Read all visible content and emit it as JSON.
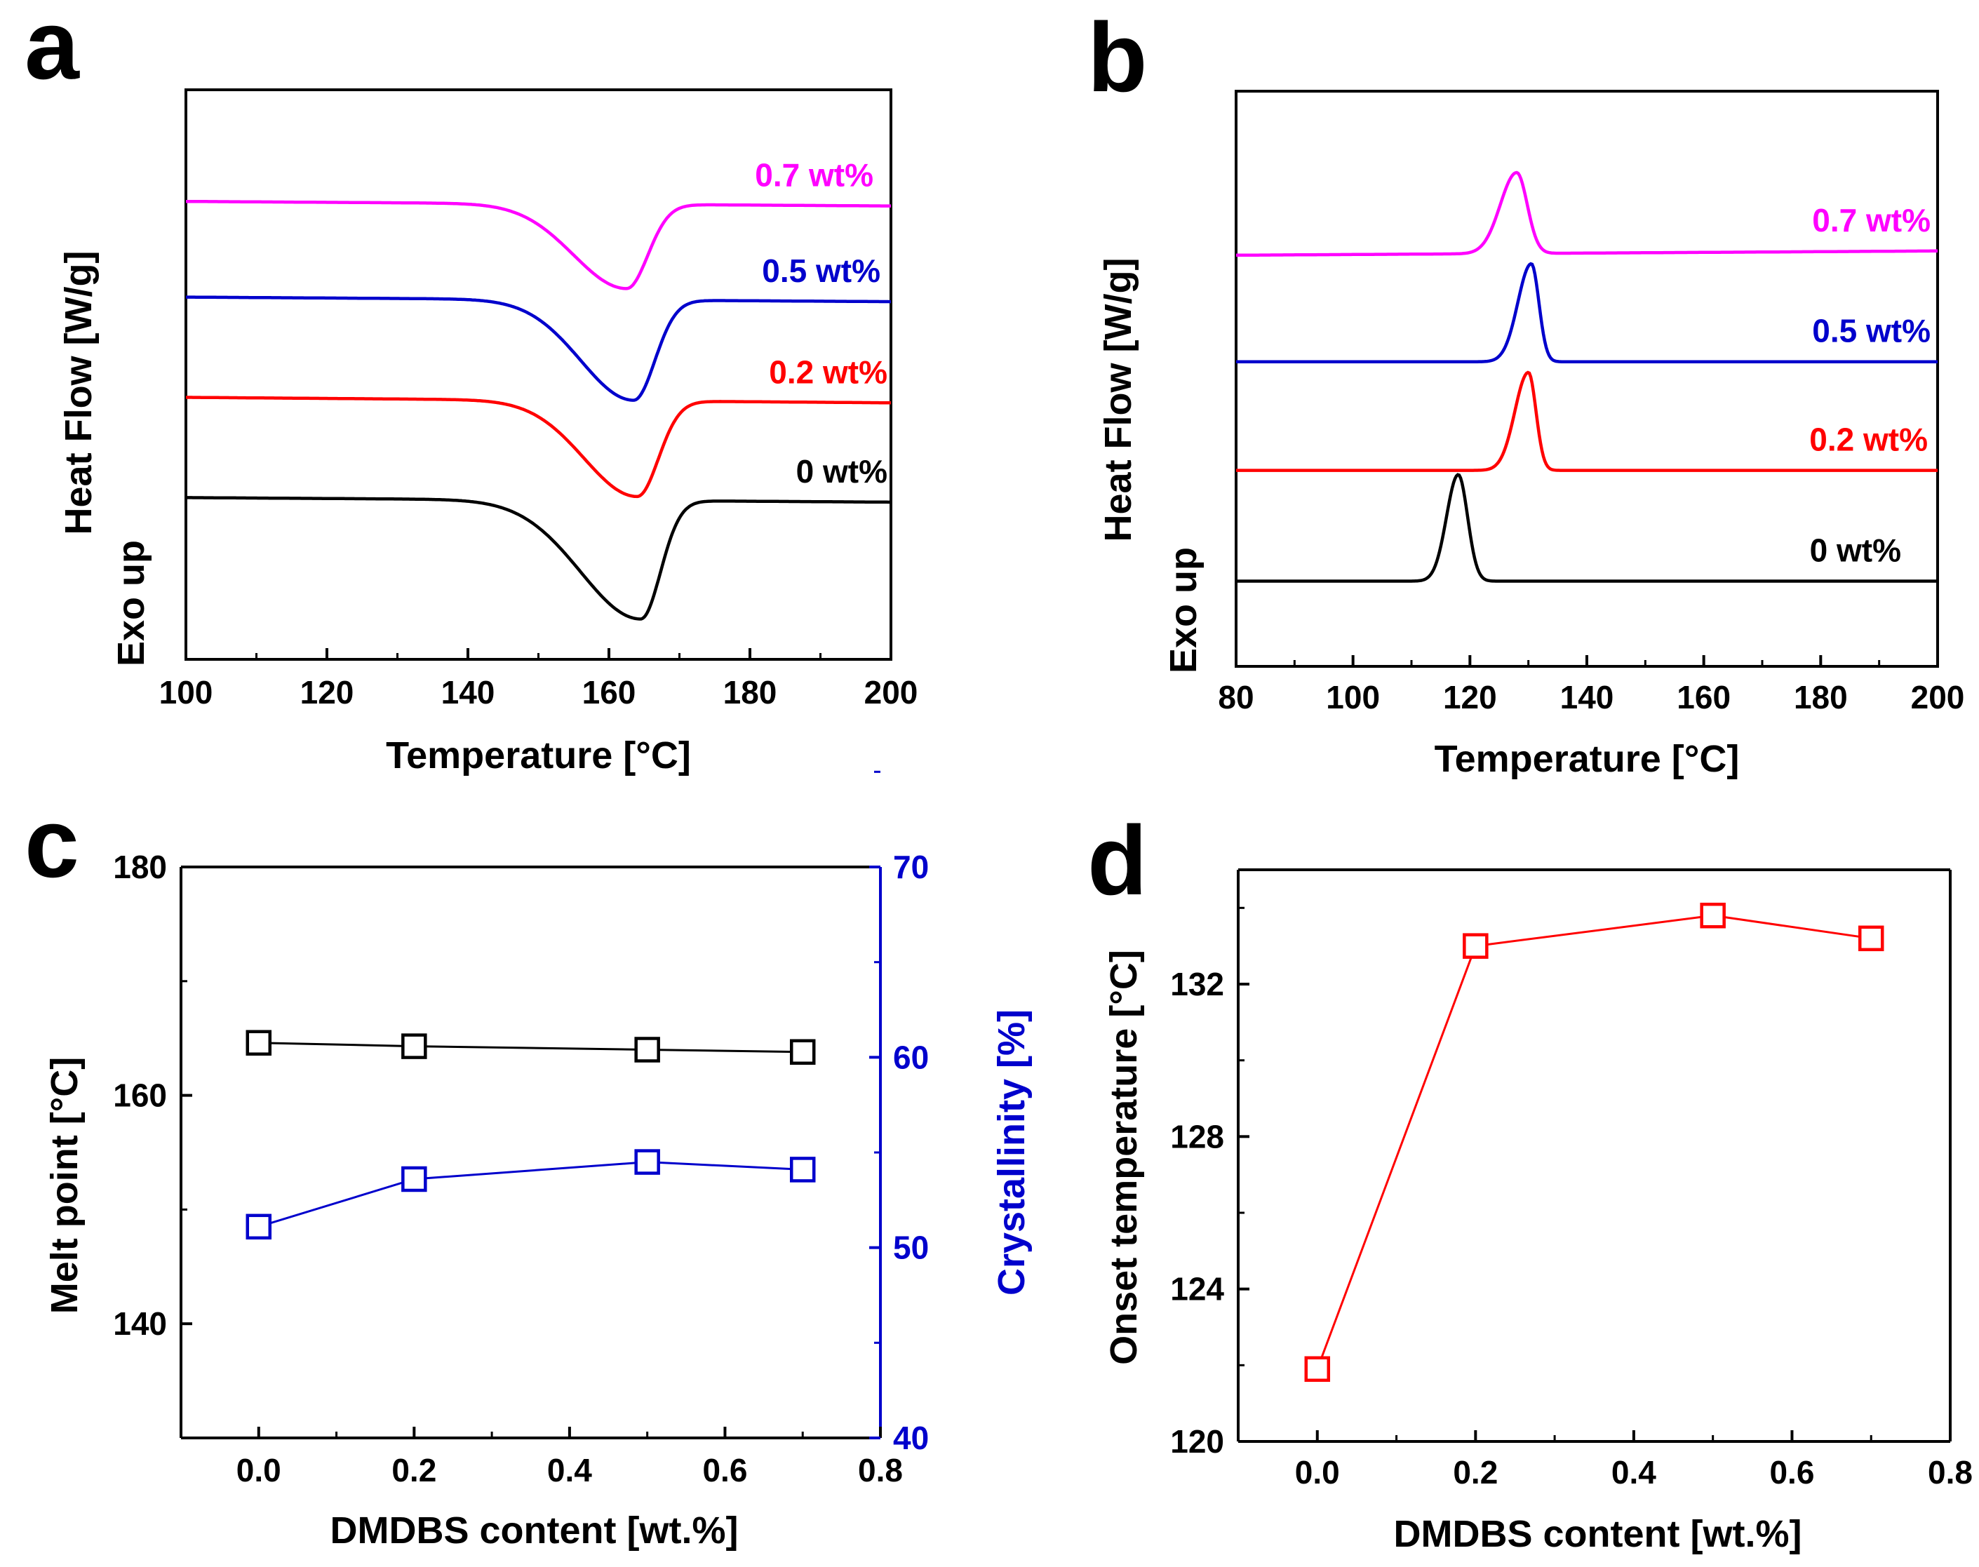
{
  "chart_data": [
    {
      "id": "a",
      "type": "line",
      "panel_label": "a",
      "xlabel": "Temperature [°C]",
      "ylabel": "Heat Flow [W/g]",
      "ylabel_note": "Exo up",
      "xlim": [
        100,
        200
      ],
      "xticks": [
        "100",
        "120",
        "140",
        "160",
        "180",
        "200"
      ],
      "y_units": "arbitrary (offset traces)",
      "series": [
        {
          "name": "0 wt%",
          "color": "#000000",
          "offset": 0.0,
          "x_start": 100,
          "baseline_start": 0.55,
          "baseline_end": 0.45,
          "peak_center": 164.5,
          "peak_depth": 2.6,
          "peak_sigma_left": 8.5,
          "peak_sigma_right": 2.8,
          "peak_direction": -1
        },
        {
          "name": "0.2 wt%",
          "color": "#ff0000",
          "offset": 2.35,
          "x_start": 100,
          "baseline_start": 0.4,
          "baseline_end": 0.28,
          "peak_center": 164.0,
          "peak_depth": 2.1,
          "peak_sigma_left": 7.5,
          "peak_sigma_right": 3.0,
          "peak_direction": -1
        },
        {
          "name": "0.5 wt%",
          "color": "#0000cc",
          "offset": 4.6,
          "x_start": 100,
          "baseline_start": 0.35,
          "baseline_end": 0.25,
          "peak_center": 163.5,
          "peak_depth": 2.2,
          "peak_sigma_left": 7.5,
          "peak_sigma_right": 3.0,
          "peak_direction": -1
        },
        {
          "name": "0.7 wt%",
          "color": "#ff00ff",
          "offset": 6.7,
          "x_start": 100,
          "baseline_start": 0.35,
          "baseline_end": 0.25,
          "peak_center": 162.5,
          "peak_depth": 1.85,
          "peak_sigma_left": 7.5,
          "peak_sigma_right": 3.0,
          "peak_direction": -1
        }
      ]
    },
    {
      "id": "b",
      "type": "line",
      "panel_label": "b",
      "xlabel": "Temperature [°C]",
      "ylabel": "Heat Flow [W/g]",
      "ylabel_note": "Exo up",
      "xlim": [
        80,
        200
      ],
      "xticks": [
        "80",
        "100",
        "120",
        "140",
        "160",
        "180",
        "200"
      ],
      "y_units": "arbitrary (offset traces)",
      "series": [
        {
          "name": "0 wt%",
          "color": "#000000",
          "offset": 0.0,
          "x_start": 80,
          "baseline_start": 0.0,
          "baseline_end": 0.0,
          "peak_center": 118.0,
          "peak_depth": 2.5,
          "peak_sigma_left": 2.0,
          "peak_sigma_right": 1.6,
          "peak_direction": 1
        },
        {
          "name": "0.2 wt%",
          "color": "#ff0000",
          "offset": 2.6,
          "x_start": 80,
          "baseline_start": 0.0,
          "baseline_end": 0.0,
          "peak_center": 130.0,
          "peak_depth": 2.3,
          "peak_sigma_left": 2.3,
          "peak_sigma_right": 1.3,
          "peak_direction": 1
        },
        {
          "name": "0.5 wt%",
          "color": "#0000cc",
          "offset": 5.15,
          "x_start": 80,
          "baseline_start": 0.0,
          "baseline_end": 0.0,
          "peak_center": 130.5,
          "peak_depth": 2.3,
          "peak_sigma_left": 2.3,
          "peak_sigma_right": 1.3,
          "peak_direction": 1
        },
        {
          "name": "0.7 wt%",
          "color": "#ff00ff",
          "offset": 7.65,
          "x_start": 80,
          "baseline_start": 0.0,
          "baseline_end": 0.1,
          "peak_center": 128.0,
          "peak_depth": 1.9,
          "peak_sigma_left": 2.8,
          "peak_sigma_right": 1.8,
          "peak_direction": 1
        }
      ]
    },
    {
      "id": "c",
      "type": "scatter",
      "panel_label": "c",
      "xlabel": "DMDBS content [wt.%]",
      "ylabel": "Melt point [°C]",
      "y2label": "Crystallinity [%]",
      "xlim": [
        -0.1,
        0.8
      ],
      "ylim": [
        130,
        180
      ],
      "y2lim": [
        40,
        70
      ],
      "xticks": [
        "0.0",
        "0.2",
        "0.4",
        "0.6",
        "0.8"
      ],
      "yticks": [
        "140",
        "160",
        "180"
      ],
      "y2ticks": [
        "40",
        "50",
        "60",
        "70"
      ],
      "y2_color": "#0000cc",
      "series": [
        {
          "name": "Melt point",
          "axis": "left",
          "color": "#000000",
          "x": [
            0.0,
            0.2,
            0.5,
            0.7
          ],
          "values": [
            164.6,
            164.3,
            164.0,
            163.8
          ]
        },
        {
          "name": "Crystallinity",
          "axis": "right",
          "color": "#0000cc",
          "x": [
            0.0,
            0.2,
            0.5,
            0.7
          ],
          "values": [
            51.1,
            53.6,
            54.5,
            54.1
          ]
        }
      ]
    },
    {
      "id": "d",
      "type": "scatter",
      "panel_label": "d",
      "xlabel": "DMDBS content [wt.%]",
      "ylabel": "Onset  temperature [°C]",
      "xlim": [
        -0.1,
        0.8
      ],
      "ylim": [
        120,
        135
      ],
      "xticks": [
        "0.0",
        "0.2",
        "0.4",
        "0.6",
        "0.8"
      ],
      "yticks": [
        "120",
        "124",
        "128",
        "132"
      ],
      "series": [
        {
          "name": "Onset temperature",
          "axis": "left",
          "color": "#ff0000",
          "x": [
            0.0,
            0.2,
            0.5,
            0.7
          ],
          "values": [
            121.9,
            133.0,
            133.8,
            133.2
          ]
        }
      ]
    }
  ]
}
